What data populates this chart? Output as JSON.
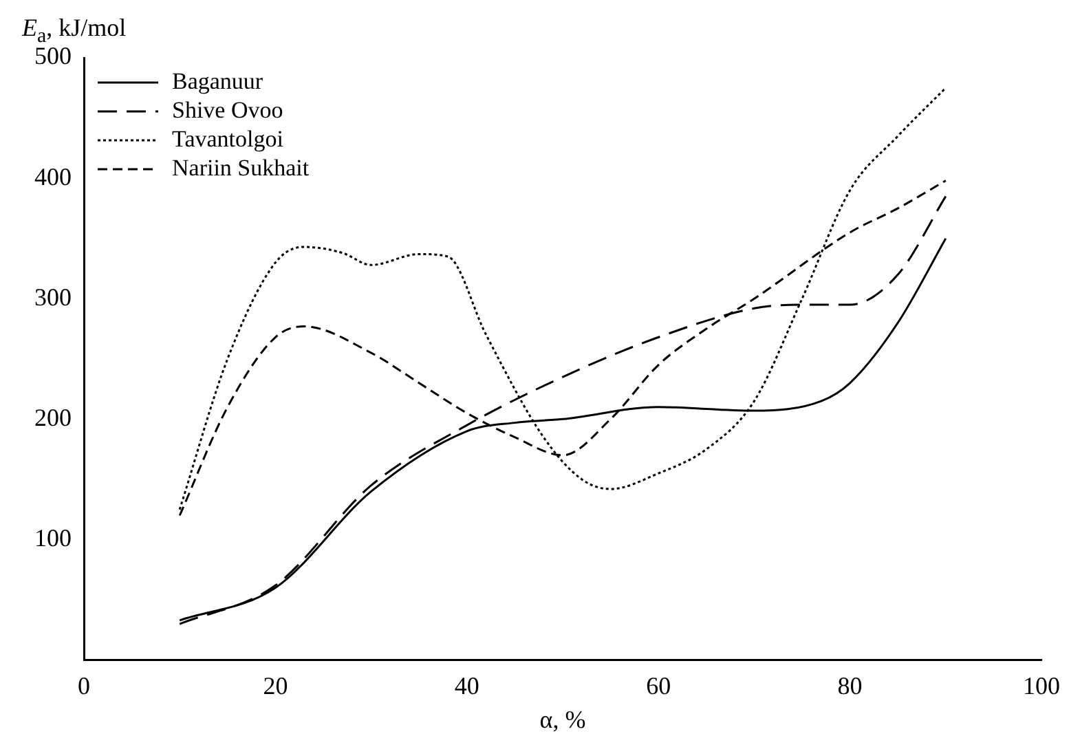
{
  "chart_data": {
    "type": "line",
    "xlabel": "α, %",
    "ylabel": "E$_{a}$, kJ/mol",
    "xlim": [
      0,
      100
    ],
    "xticks": [
      0,
      20,
      40,
      60,
      80,
      100
    ],
    "ylim": [
      0,
      500
    ],
    "yticks": [
      100,
      200,
      300,
      400,
      500
    ],
    "grid": false,
    "legend": "top left",
    "marker": "none",
    "series": [
      {
        "name": "Baganuur",
        "color": "#000000",
        "line_style": "solid",
        "x": [
          10,
          20,
          30,
          40,
          45,
          50,
          60,
          70,
          77,
          80,
          85,
          90
        ],
        "values": [
          33,
          60,
          140,
          190,
          197,
          200,
          210,
          207,
          215,
          230,
          280,
          350
        ]
      },
      {
        "name": "Shive Ovoo",
        "color": "#000000",
        "line_style": "dashed",
        "x": [
          10,
          20,
          30,
          40,
          50,
          60,
          70,
          75,
          80,
          85,
          90
        ],
        "values": [
          30,
          62,
          145,
          195,
          235,
          268,
          292,
          295,
          295,
          320,
          385
        ]
      },
      {
        "name": "Tavantolgoi",
        "color": "#000000",
        "line_style": "dotted",
        "x": [
          10,
          15,
          20,
          23,
          27,
          30,
          35,
          38,
          42,
          48,
          52,
          55,
          60,
          65,
          70,
          75,
          80,
          85,
          90
        ],
        "values": [
          125,
          250,
          330,
          343,
          338,
          328,
          337,
          335,
          270,
          185,
          150,
          142,
          155,
          175,
          215,
          300,
          390,
          435,
          475
        ]
      },
      {
        "name": "Nariin Sukhait",
        "color": "#000000",
        "line_style": "dashed",
        "x": [
          10,
          15,
          20,
          23,
          30,
          35,
          40,
          45,
          50,
          55,
          60,
          65,
          70,
          80,
          85,
          90
        ],
        "values": [
          120,
          210,
          268,
          277,
          255,
          230,
          205,
          185,
          170,
          200,
          245,
          275,
          300,
          355,
          375,
          398
        ]
      }
    ]
  }
}
